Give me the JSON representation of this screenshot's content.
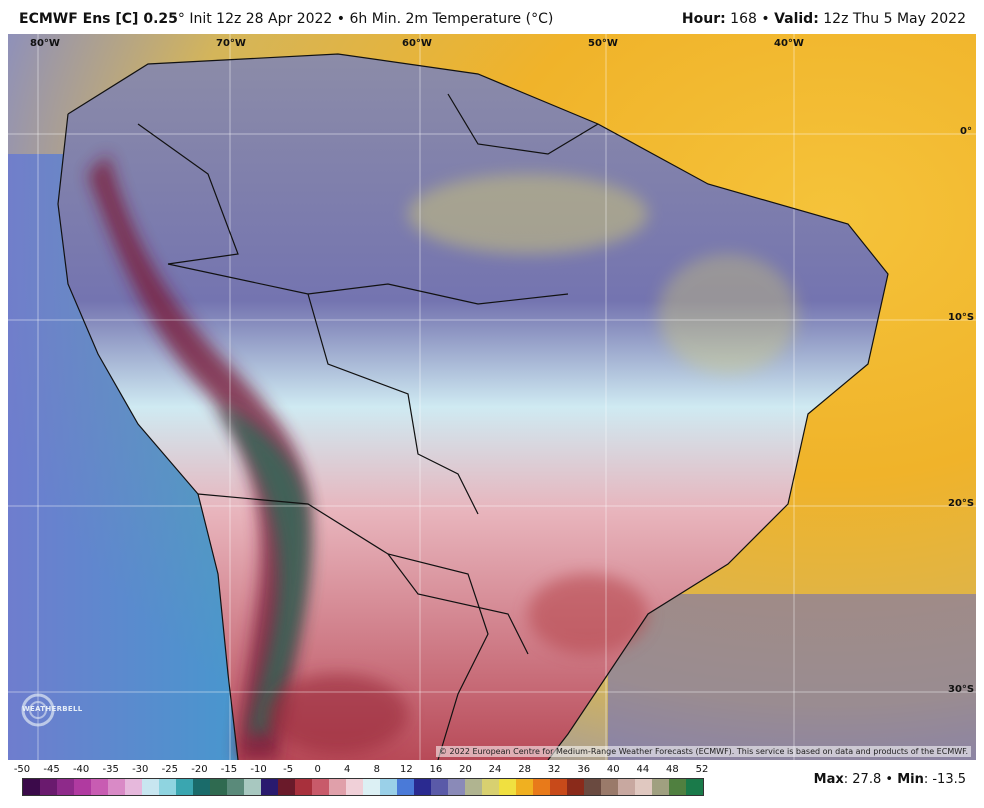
{
  "header": {
    "model": "ECMWF Ens [C] 0.25",
    "degree": "°",
    "init": "Init 12z 28 Apr 2022",
    "bullet": "•",
    "product": "6h Min. 2m Temperature (°C)",
    "hour_label": "Hour:",
    "hour_value": "168",
    "valid_label": "Valid:",
    "valid_value": "12z Thu 5 May 2022"
  },
  "map": {
    "lon_labels": [
      "80°W",
      "70°W",
      "60°W",
      "50°W",
      "40°W"
    ],
    "lat_labels": [
      "0°",
      "10°S",
      "20°S",
      "30°S"
    ],
    "copyright": "© 2022 European Centre for Medium-Range Weather Forecasts (ECMWF). This service is based on data and products of the ECMWF.",
    "logo_text": "WEATHERBELL"
  },
  "colorbar": {
    "ticks": [
      "-50",
      "-45",
      "-40",
      "-35",
      "-30",
      "-25",
      "-20",
      "-15",
      "-10",
      "-5",
      "0",
      "4",
      "8",
      "12",
      "16",
      "20",
      "24",
      "28",
      "32",
      "36",
      "40",
      "44",
      "48",
      "52"
    ],
    "colors": [
      "#3b0a4a",
      "#6a1a6e",
      "#8e2a8a",
      "#b03aa0",
      "#c85cb2",
      "#d98ac6",
      "#e6b8dc",
      "#c8e6f0",
      "#8fd4e0",
      "#3aa6b0",
      "#1a6b6a",
      "#2f6a50",
      "#5a8a7a",
      "#a8c8c0",
      "#2a1a6e",
      "#6a1a2a",
      "#a8303c",
      "#c85a6a",
      "#e0a0aa",
      "#f0d0d8",
      "#dcf0f4",
      "#9ad0e8",
      "#4a7ad8",
      "#2a2a90",
      "#5a5aa8",
      "#8a8ab8",
      "#b0b490",
      "#d8d070",
      "#f0e040",
      "#f0b020",
      "#e87a1a",
      "#c84a1a",
      "#8a2a1a",
      "#6a4a40",
      "#9a7a6a",
      "#c8a8a0",
      "#e0c8c0",
      "#a0a080",
      "#508040",
      "#1a7a4a"
    ]
  },
  "stats": {
    "max_label": "Max",
    "max_value": "27.8",
    "sep": "•",
    "min_label": "Min",
    "min_value": "-13.5"
  }
}
